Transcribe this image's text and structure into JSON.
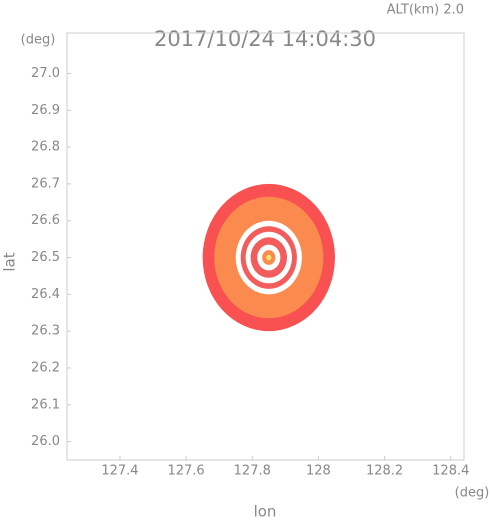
{
  "chart_data": {
    "type": "rings",
    "title": "2017/10/24 14:04:30",
    "subtitle": "ALT(km) 2.0",
    "xlabel": "lon",
    "ylabel": "lat",
    "xunit": "(deg)",
    "yunit": "(deg)",
    "xlim": [
      127.24,
      128.44
    ],
    "ylim": [
      25.95,
      27.11
    ],
    "xticks": [
      127.4,
      127.6,
      127.8,
      128.0,
      128.2,
      128.4
    ],
    "yticks": [
      {
        "value": 26.0,
        "label": "26.0"
      },
      26.1,
      26.2,
      26.3,
      26.4,
      26.5,
      26.6,
      26.7,
      26.8,
      26.9,
      {
        "value": 27.0,
        "label": "27.0"
      }
    ],
    "center": [
      127.85,
      26.5
    ],
    "rings": [
      {
        "radius": 0.2,
        "color": "#f95151"
      },
      {
        "radius": 0.165,
        "color": "#fb8a4e"
      },
      {
        "radius": 0.1,
        "color": "#ffffff"
      },
      {
        "radius": 0.085,
        "color": "#f25c5c"
      },
      {
        "radius": 0.07,
        "color": "#ffffff"
      },
      {
        "radius": 0.055,
        "color": "#f25c5c"
      },
      {
        "radius": 0.035,
        "color": "#ffffff"
      },
      {
        "radius": 0.02,
        "color": "#fb8a4e"
      },
      {
        "radius": 0.008,
        "color": "#ffe36a"
      }
    ]
  }
}
